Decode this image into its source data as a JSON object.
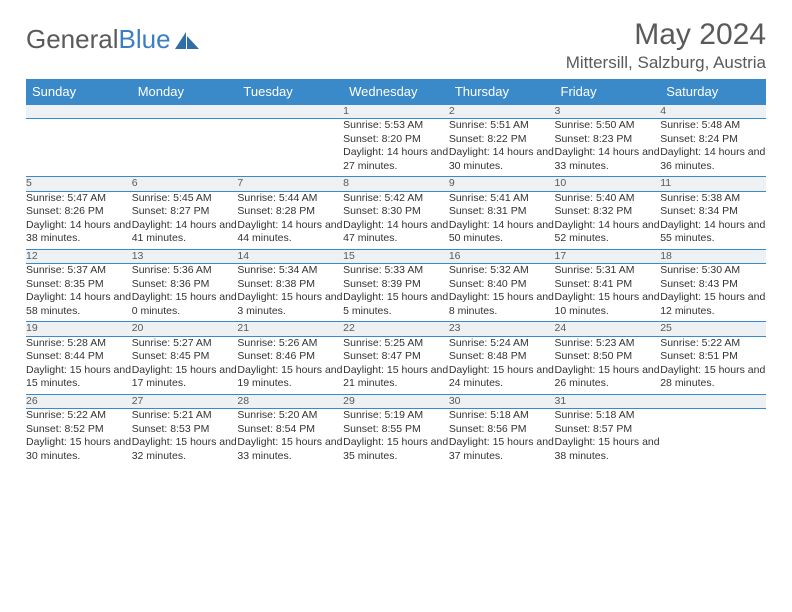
{
  "logo": {
    "text1": "General",
    "text2": "Blue"
  },
  "title": "May 2024",
  "location": "Mittersill, Salzburg, Austria",
  "colors": {
    "header_bg": "#3a8ac9",
    "header_text": "#ffffff",
    "daynum_bg": "#eef1f3",
    "border": "#3a8ac9",
    "title_color": "#5a5a5a",
    "logo_blue": "#3a7fc4"
  },
  "dayHeaders": [
    "Sunday",
    "Monday",
    "Tuesday",
    "Wednesday",
    "Thursday",
    "Friday",
    "Saturday"
  ],
  "weeks": [
    [
      null,
      null,
      null,
      {
        "n": "1",
        "sr": "5:53 AM",
        "ss": "8:20 PM",
        "dl": "14 hours and 27 minutes."
      },
      {
        "n": "2",
        "sr": "5:51 AM",
        "ss": "8:22 PM",
        "dl": "14 hours and 30 minutes."
      },
      {
        "n": "3",
        "sr": "5:50 AM",
        "ss": "8:23 PM",
        "dl": "14 hours and 33 minutes."
      },
      {
        "n": "4",
        "sr": "5:48 AM",
        "ss": "8:24 PM",
        "dl": "14 hours and 36 minutes."
      }
    ],
    [
      {
        "n": "5",
        "sr": "5:47 AM",
        "ss": "8:26 PM",
        "dl": "14 hours and 38 minutes."
      },
      {
        "n": "6",
        "sr": "5:45 AM",
        "ss": "8:27 PM",
        "dl": "14 hours and 41 minutes."
      },
      {
        "n": "7",
        "sr": "5:44 AM",
        "ss": "8:28 PM",
        "dl": "14 hours and 44 minutes."
      },
      {
        "n": "8",
        "sr": "5:42 AM",
        "ss": "8:30 PM",
        "dl": "14 hours and 47 minutes."
      },
      {
        "n": "9",
        "sr": "5:41 AM",
        "ss": "8:31 PM",
        "dl": "14 hours and 50 minutes."
      },
      {
        "n": "10",
        "sr": "5:40 AM",
        "ss": "8:32 PM",
        "dl": "14 hours and 52 minutes."
      },
      {
        "n": "11",
        "sr": "5:38 AM",
        "ss": "8:34 PM",
        "dl": "14 hours and 55 minutes."
      }
    ],
    [
      {
        "n": "12",
        "sr": "5:37 AM",
        "ss": "8:35 PM",
        "dl": "14 hours and 58 minutes."
      },
      {
        "n": "13",
        "sr": "5:36 AM",
        "ss": "8:36 PM",
        "dl": "15 hours and 0 minutes."
      },
      {
        "n": "14",
        "sr": "5:34 AM",
        "ss": "8:38 PM",
        "dl": "15 hours and 3 minutes."
      },
      {
        "n": "15",
        "sr": "5:33 AM",
        "ss": "8:39 PM",
        "dl": "15 hours and 5 minutes."
      },
      {
        "n": "16",
        "sr": "5:32 AM",
        "ss": "8:40 PM",
        "dl": "15 hours and 8 minutes."
      },
      {
        "n": "17",
        "sr": "5:31 AM",
        "ss": "8:41 PM",
        "dl": "15 hours and 10 minutes."
      },
      {
        "n": "18",
        "sr": "5:30 AM",
        "ss": "8:43 PM",
        "dl": "15 hours and 12 minutes."
      }
    ],
    [
      {
        "n": "19",
        "sr": "5:28 AM",
        "ss": "8:44 PM",
        "dl": "15 hours and 15 minutes."
      },
      {
        "n": "20",
        "sr": "5:27 AM",
        "ss": "8:45 PM",
        "dl": "15 hours and 17 minutes."
      },
      {
        "n": "21",
        "sr": "5:26 AM",
        "ss": "8:46 PM",
        "dl": "15 hours and 19 minutes."
      },
      {
        "n": "22",
        "sr": "5:25 AM",
        "ss": "8:47 PM",
        "dl": "15 hours and 21 minutes."
      },
      {
        "n": "23",
        "sr": "5:24 AM",
        "ss": "8:48 PM",
        "dl": "15 hours and 24 minutes."
      },
      {
        "n": "24",
        "sr": "5:23 AM",
        "ss": "8:50 PM",
        "dl": "15 hours and 26 minutes."
      },
      {
        "n": "25",
        "sr": "5:22 AM",
        "ss": "8:51 PM",
        "dl": "15 hours and 28 minutes."
      }
    ],
    [
      {
        "n": "26",
        "sr": "5:22 AM",
        "ss": "8:52 PM",
        "dl": "15 hours and 30 minutes."
      },
      {
        "n": "27",
        "sr": "5:21 AM",
        "ss": "8:53 PM",
        "dl": "15 hours and 32 minutes."
      },
      {
        "n": "28",
        "sr": "5:20 AM",
        "ss": "8:54 PM",
        "dl": "15 hours and 33 minutes."
      },
      {
        "n": "29",
        "sr": "5:19 AM",
        "ss": "8:55 PM",
        "dl": "15 hours and 35 minutes."
      },
      {
        "n": "30",
        "sr": "5:18 AM",
        "ss": "8:56 PM",
        "dl": "15 hours and 37 minutes."
      },
      {
        "n": "31",
        "sr": "5:18 AM",
        "ss": "8:57 PM",
        "dl": "15 hours and 38 minutes."
      },
      null
    ]
  ],
  "labels": {
    "sunrise": "Sunrise: ",
    "sunset": "Sunset: ",
    "daylight": "Daylight: "
  }
}
